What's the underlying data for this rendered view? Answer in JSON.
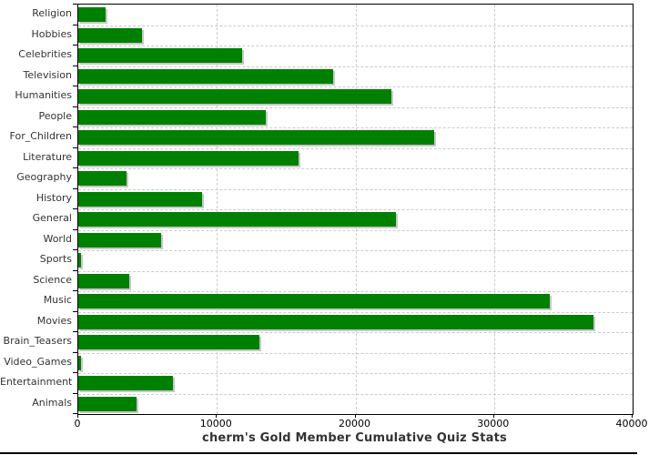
{
  "page": {
    "background_color": "#ffffff",
    "bottom_border_color": "#000000"
  },
  "chart_data": {
    "type": "bar",
    "orientation": "horizontal",
    "title": "cherm's Gold Member Cumulative Quiz Stats",
    "categories": [
      "Religion",
      "Hobbies",
      "Celebrities",
      "Television",
      "Humanities",
      "People",
      "For_Children",
      "Literature",
      "Geography",
      "History",
      "General",
      "World",
      "Sports",
      "Science",
      "Music",
      "Movies",
      "Brain_Teasers",
      "Video_Games",
      "Entertainment",
      "Animals"
    ],
    "values": [
      2000,
      4600,
      11800,
      18400,
      22600,
      13500,
      25700,
      15900,
      3500,
      8900,
      22900,
      6000,
      200,
      3700,
      34000,
      37200,
      13100,
      200,
      6800,
      4200
    ],
    "xlim": [
      0,
      40000
    ],
    "x_ticks": [
      0,
      10000,
      20000,
      30000,
      40000
    ],
    "x_tick_labels": [
      "0",
      "10000",
      "20000",
      "30000",
      "40000"
    ],
    "xlabel": "",
    "ylabel": "",
    "grid": "dashed",
    "legend": "none",
    "colors": {
      "bar": "#008000",
      "bar_shadow": "#c8c8c8",
      "gridline": "#cccccc",
      "axis": "#000000",
      "title_text": "#333333",
      "label_text": "#333333",
      "tick_text": "#000000"
    }
  }
}
